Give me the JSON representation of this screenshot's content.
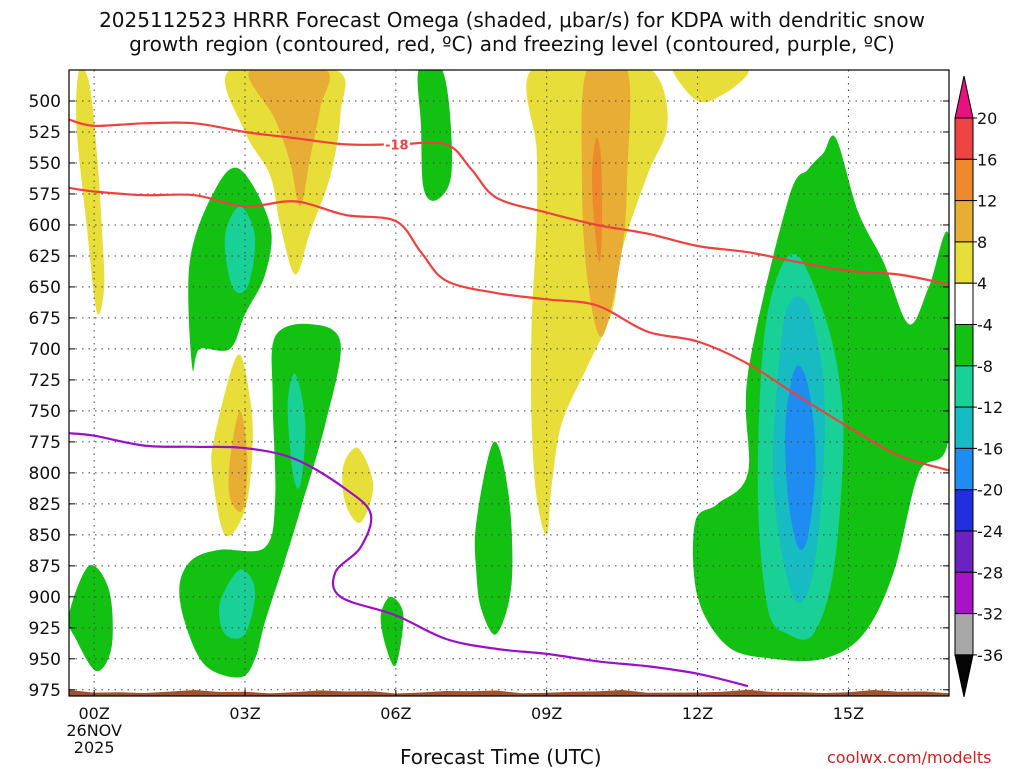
{
  "chart_data": {
    "type": "heatmap",
    "title_line1": "2025112523 HRRR Forecast Omega (shaded, μbar/s) for KDPA with dendritic snow",
    "title_line2": "growth region (contoured, red, ºC) and freezing level (contoured, purple, ºC)",
    "xlabel": "Forecast Time (UTC)",
    "credit": "coolwx.com/modelts",
    "x_range_hours": [
      -0.5,
      17.0
    ],
    "y_range_mb": [
      475,
      980
    ],
    "x_ticks": [
      {
        "hour": 0,
        "label": "00Z"
      },
      {
        "hour": 3,
        "label": "03Z"
      },
      {
        "hour": 6,
        "label": "06Z"
      },
      {
        "hour": 9,
        "label": "09Z"
      },
      {
        "hour": 12,
        "label": "12Z"
      },
      {
        "hour": 15,
        "label": "15Z"
      }
    ],
    "date_label": [
      "26NOV",
      "2025"
    ],
    "y_ticks": [
      500,
      525,
      550,
      575,
      600,
      625,
      650,
      675,
      700,
      725,
      750,
      775,
      800,
      825,
      850,
      875,
      900,
      925,
      950,
      975
    ],
    "colorbar": {
      "labels": [
        "20",
        "16",
        "12",
        "8",
        "4",
        "-4",
        "-8",
        "-12",
        "-16",
        "-20",
        "-24",
        "-28",
        "-32",
        "-36"
      ],
      "colors": [
        "#e8127f",
        "#f04444",
        "#ef8a2c",
        "#e8ad34",
        "#e8de3a",
        "#ffffff",
        "#12c112",
        "#19d196",
        "#16bcc2",
        "#1e8cf0",
        "#2030e0",
        "#6a22c0",
        "#a614c4",
        "#a8a8a8",
        "#050505"
      ]
    },
    "fill_colors": {
      "green": "#12c112",
      "teal": "#19d196",
      "cyan": "#16bcc2",
      "blue": "#1e8cf0",
      "yellow": "#e8de3a",
      "gold": "#e8ad34",
      "orange": "#ef8a2c",
      "terrain": "#a0522d",
      "red_contour": "#f04040",
      "purple_contour": "#9a10c8"
    },
    "omega_regions": [
      {
        "level": "4",
        "color": "yellow",
        "points": [
          [
            -0.3,
            475
          ],
          [
            -0.1,
            485
          ],
          [
            0.05,
            540
          ],
          [
            0.15,
            600
          ],
          [
            0.2,
            650
          ],
          [
            0.05,
            670
          ],
          [
            -0.15,
            600
          ],
          [
            -0.35,
            520
          ]
        ]
      },
      {
        "level": "4",
        "color": "yellow",
        "points": [
          [
            2.7,
            475
          ],
          [
            4.8,
            475
          ],
          [
            4.9,
            510
          ],
          [
            4.7,
            560
          ],
          [
            4.3,
            605
          ],
          [
            4.0,
            640
          ],
          [
            3.7,
            600
          ],
          [
            3.5,
            560
          ],
          [
            3.0,
            525
          ]
        ]
      },
      {
        "level": "8",
        "color": "gold",
        "points": [
          [
            3.1,
            475
          ],
          [
            4.6,
            475
          ],
          [
            4.5,
            505
          ],
          [
            4.3,
            545
          ],
          [
            4.1,
            585
          ],
          [
            3.9,
            550
          ],
          [
            3.6,
            515
          ]
        ]
      },
      {
        "level": "-4",
        "color": "green",
        "points": [
          [
            6.45,
            475
          ],
          [
            6.85,
            470
          ],
          [
            7.05,
            500
          ],
          [
            7.1,
            560
          ],
          [
            6.8,
            580
          ],
          [
            6.55,
            570
          ],
          [
            6.5,
            520
          ]
        ]
      },
      {
        "level": "4",
        "color": "yellow",
        "points": [
          [
            8.7,
            475
          ],
          [
            10.5,
            470
          ],
          [
            11.2,
            480
          ],
          [
            11.4,
            520
          ],
          [
            11.0,
            560
          ],
          [
            10.5,
            620
          ],
          [
            10.3,
            670
          ],
          [
            9.8,
            715
          ],
          [
            9.3,
            760
          ],
          [
            9.1,
            810
          ],
          [
            9.0,
            850
          ],
          [
            8.8,
            820
          ],
          [
            8.7,
            760
          ],
          [
            8.7,
            680
          ],
          [
            8.8,
            600
          ],
          [
            8.8,
            540
          ]
        ]
      },
      {
        "level": "8",
        "color": "gold",
        "points": [
          [
            9.8,
            475
          ],
          [
            10.6,
            475
          ],
          [
            10.6,
            560
          ],
          [
            10.5,
            620
          ],
          [
            10.1,
            690
          ],
          [
            9.8,
            640
          ],
          [
            9.7,
            560
          ]
        ]
      },
      {
        "level": "12",
        "color": "orange",
        "points": [
          [
            9.98,
            530
          ],
          [
            10.08,
            545
          ],
          [
            10.1,
            600
          ],
          [
            10.05,
            630
          ],
          [
            9.95,
            600
          ],
          [
            9.9,
            560
          ]
        ]
      },
      {
        "level": "4",
        "color": "yellow",
        "points": [
          [
            11.5,
            475
          ],
          [
            11.8,
            470
          ],
          [
            12.8,
            470
          ],
          [
            13.0,
            478
          ],
          [
            12.5,
            495
          ],
          [
            12.0,
            500
          ]
        ]
      },
      {
        "level": "-4",
        "color": "green",
        "points": [
          [
            1.9,
            630
          ],
          [
            2.4,
            572
          ],
          [
            2.9,
            555
          ],
          [
            3.5,
            600
          ],
          [
            3.4,
            640
          ],
          [
            3.0,
            672
          ],
          [
            2.7,
            700
          ],
          [
            2.1,
            700
          ],
          [
            1.95,
            715
          ]
        ]
      },
      {
        "level": "-8",
        "color": "teal",
        "points": [
          [
            2.6,
            610
          ],
          [
            2.9,
            585
          ],
          [
            3.2,
            610
          ],
          [
            3.05,
            650
          ],
          [
            2.75,
            650
          ]
        ]
      },
      {
        "level": "4",
        "color": "yellow",
        "points": [
          [
            2.4,
            770
          ],
          [
            2.85,
            705
          ],
          [
            3.1,
            740
          ],
          [
            3.15,
            780
          ],
          [
            3.0,
            830
          ],
          [
            2.6,
            850
          ],
          [
            2.35,
            800
          ]
        ]
      },
      {
        "level": "8",
        "color": "gold",
        "points": [
          [
            2.7,
            790
          ],
          [
            2.9,
            750
          ],
          [
            3.05,
            790
          ],
          [
            2.95,
            830
          ],
          [
            2.7,
            820
          ]
        ]
      },
      {
        "level": "-4",
        "color": "green",
        "points": [
          [
            3.6,
            690
          ],
          [
            4.3,
            680
          ],
          [
            4.9,
            695
          ],
          [
            4.6,
            760
          ],
          [
            4.1,
            830
          ],
          [
            3.8,
            870
          ],
          [
            3.4,
            920
          ],
          [
            3.2,
            950
          ],
          [
            2.9,
            965
          ],
          [
            2.2,
            955
          ],
          [
            1.8,
            920
          ],
          [
            1.7,
            890
          ],
          [
            1.95,
            870
          ],
          [
            2.5,
            862
          ],
          [
            3.4,
            860
          ],
          [
            3.6,
            820
          ],
          [
            3.55,
            740
          ]
        ]
      },
      {
        "level": "-8",
        "color": "teal",
        "points": [
          [
            3.85,
            745
          ],
          [
            4.0,
            720
          ],
          [
            4.2,
            760
          ],
          [
            4.1,
            810
          ],
          [
            3.95,
            800
          ]
        ]
      },
      {
        "level": "-8",
        "color": "teal",
        "points": [
          [
            2.5,
            905
          ],
          [
            2.9,
            878
          ],
          [
            3.2,
            895
          ],
          [
            3.0,
            930
          ],
          [
            2.6,
            930
          ]
        ]
      },
      {
        "level": "4",
        "color": "yellow",
        "points": [
          [
            4.95,
            795
          ],
          [
            5.25,
            780
          ],
          [
            5.55,
            810
          ],
          [
            5.3,
            840
          ],
          [
            5.0,
            825
          ]
        ]
      },
      {
        "level": "-4",
        "color": "green",
        "points": [
          [
            -0.5,
            915
          ],
          [
            -0.1,
            875
          ],
          [
            0.3,
            895
          ],
          [
            0.35,
            940
          ],
          [
            0.05,
            960
          ],
          [
            -0.35,
            935
          ]
        ]
      },
      {
        "level": "-4",
        "color": "green",
        "points": [
          [
            5.7,
            915
          ],
          [
            5.9,
            900
          ],
          [
            6.15,
            915
          ],
          [
            6.0,
            955
          ],
          [
            5.8,
            940
          ]
        ]
      },
      {
        "level": "-4",
        "color": "green",
        "points": [
          [
            7.6,
            840
          ],
          [
            7.95,
            775
          ],
          [
            8.25,
            820
          ],
          [
            8.3,
            890
          ],
          [
            8.0,
            930
          ],
          [
            7.7,
            910
          ],
          [
            7.6,
            880
          ]
        ]
      },
      {
        "level": "-4",
        "color": "green",
        "points": [
          [
            13.8,
            580
          ],
          [
            14.2,
            555
          ],
          [
            14.5,
            542
          ],
          [
            14.75,
            530
          ],
          [
            15.2,
            590
          ],
          [
            15.7,
            630
          ],
          [
            16.2,
            680
          ],
          [
            16.6,
            650
          ],
          [
            17.0,
            610
          ],
          [
            17.0,
            770
          ],
          [
            16.4,
            800
          ],
          [
            15.9,
            880
          ],
          [
            15.3,
            930
          ],
          [
            14.5,
            950
          ],
          [
            13.5,
            950
          ],
          [
            12.6,
            940
          ],
          [
            12.0,
            900
          ],
          [
            11.95,
            840
          ],
          [
            12.4,
            825
          ],
          [
            13.0,
            800
          ],
          [
            13.0,
            720
          ]
        ]
      },
      {
        "level": "-8",
        "color": "teal",
        "points": [
          [
            13.6,
            640
          ],
          [
            14.0,
            625
          ],
          [
            14.5,
            670
          ],
          [
            14.8,
            720
          ],
          [
            14.9,
            780
          ],
          [
            14.7,
            880
          ],
          [
            14.3,
            930
          ],
          [
            13.8,
            930
          ],
          [
            13.4,
            910
          ],
          [
            13.2,
            820
          ],
          [
            13.3,
            700
          ]
        ]
      },
      {
        "level": "-12",
        "color": "cyan",
        "points": [
          [
            13.8,
            665
          ],
          [
            14.2,
            665
          ],
          [
            14.5,
            725
          ],
          [
            14.5,
            800
          ],
          [
            14.3,
            880
          ],
          [
            14.0,
            905
          ],
          [
            13.7,
            870
          ],
          [
            13.5,
            800
          ],
          [
            13.6,
            720
          ]
        ]
      },
      {
        "level": "-16",
        "color": "blue",
        "points": [
          [
            13.95,
            715
          ],
          [
            14.2,
            730
          ],
          [
            14.35,
            790
          ],
          [
            14.2,
            850
          ],
          [
            14.0,
            860
          ],
          [
            13.8,
            820
          ],
          [
            13.75,
            760
          ]
        ]
      }
    ],
    "red_contours": [
      {
        "label": "-18",
        "points": [
          [
            -0.5,
            515
          ],
          [
            0,
            520
          ],
          [
            1,
            518
          ],
          [
            2,
            518
          ],
          [
            3,
            525
          ],
          [
            4,
            530
          ],
          [
            5,
            535
          ],
          [
            6,
            535
          ],
          [
            7,
            535
          ],
          [
            7.5,
            555
          ],
          [
            8,
            578
          ],
          [
            9,
            590
          ],
          [
            10,
            600
          ],
          [
            11,
            607
          ],
          [
            12,
            617
          ],
          [
            13,
            622
          ],
          [
            14,
            630
          ],
          [
            15,
            637
          ],
          [
            16,
            640
          ],
          [
            17,
            648
          ]
        ]
      },
      {
        "label": "",
        "points": [
          [
            -0.5,
            570
          ],
          [
            0,
            573
          ],
          [
            1,
            576
          ],
          [
            2,
            576
          ],
          [
            3,
            585
          ],
          [
            4,
            581
          ],
          [
            5,
            592
          ],
          [
            6,
            597
          ],
          [
            6.5,
            622
          ],
          [
            7,
            645
          ],
          [
            8,
            655
          ],
          [
            9,
            660
          ],
          [
            10,
            665
          ],
          [
            11,
            686
          ],
          [
            12,
            694
          ],
          [
            13,
            712
          ],
          [
            14,
            738
          ],
          [
            15,
            763
          ],
          [
            16,
            786
          ],
          [
            17,
            798
          ]
        ]
      }
    ],
    "purple_contours": [
      {
        "label": "",
        "points": [
          [
            -0.5,
            768
          ],
          [
            0,
            770
          ],
          [
            1,
            778
          ],
          [
            2,
            779
          ],
          [
            3,
            780
          ],
          [
            4,
            789
          ],
          [
            5,
            813
          ],
          [
            5.5,
            833
          ],
          [
            5.3,
            860
          ],
          [
            4.8,
            880
          ],
          [
            4.9,
            900
          ],
          [
            6,
            915
          ],
          [
            7,
            934
          ],
          [
            8,
            942
          ],
          [
            9,
            946
          ],
          [
            10,
            952
          ],
          [
            11,
            956
          ],
          [
            12,
            962
          ],
          [
            13,
            972
          ]
        ]
      }
    ]
  }
}
